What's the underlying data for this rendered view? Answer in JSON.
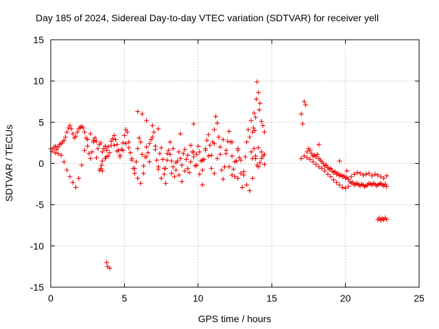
{
  "chart_data": {
    "type": "scatter",
    "title": "Day 185 of 2024, Sidereal Day-to-day VTEC variation (SDTVAR) for receiver yell",
    "xlabel": "GPS time / hours",
    "ylabel": "SDTVAR / TECUs",
    "xlim": [
      0,
      25
    ],
    "ylim": [
      -15,
      15
    ],
    "xticks": [
      "0",
      "5",
      "10",
      "15",
      "20",
      "25"
    ],
    "yticks": [
      "-15",
      "-10",
      "-5",
      "0",
      "5",
      "10",
      "15"
    ],
    "grid": true,
    "marker": "plus",
    "color": "#ee0000",
    "series": [
      {
        "name": "SDTVAR",
        "x": [
          0.0,
          0.1,
          0.2,
          0.3,
          0.4,
          0.5,
          0.6,
          0.7,
          0.8,
          0.9,
          1.0,
          1.1,
          1.2,
          1.3,
          1.4,
          1.5,
          1.6,
          1.7,
          1.8,
          1.9,
          2.0,
          2.1,
          2.2,
          2.3,
          2.4,
          2.5,
          2.6,
          2.7,
          2.8,
          2.9,
          3.0,
          3.1,
          3.2,
          3.3,
          3.4,
          3.5,
          3.6,
          3.7,
          3.8,
          3.9,
          4.0,
          4.1,
          4.2,
          4.3,
          4.4,
          4.5,
          4.6,
          4.7,
          4.8,
          4.9,
          5.0,
          5.1,
          5.2,
          5.3,
          5.4,
          5.5,
          5.6,
          5.7,
          5.8,
          5.9,
          6.0,
          6.1,
          6.2,
          6.3,
          6.4,
          6.5,
          6.6,
          6.7,
          6.8,
          6.9,
          7.0,
          7.1,
          7.2,
          7.3,
          7.4,
          7.5,
          7.6,
          7.7,
          7.8,
          7.9,
          8.0,
          8.1,
          8.2,
          8.3,
          8.4,
          8.5,
          8.6,
          8.7,
          8.8,
          8.9,
          9.0,
          9.1,
          9.2,
          9.3,
          9.4,
          9.5,
          9.6,
          9.7,
          9.8,
          9.9,
          10.0,
          10.1,
          10.2,
          10.3,
          10.4,
          10.5,
          10.6,
          10.7,
          10.8,
          10.9,
          11.0,
          11.1,
          11.2,
          11.3,
          11.4,
          11.5,
          11.6,
          11.7,
          11.8,
          11.9,
          12.0,
          12.1,
          12.2,
          12.3,
          12.4,
          12.5,
          12.6,
          12.7,
          12.8,
          12.9,
          13.0,
          13.1,
          13.2,
          13.3,
          13.4,
          13.5,
          13.6,
          13.7,
          13.8,
          13.9,
          14.0,
          14.1,
          14.2,
          14.3,
          14.4,
          14.5,
          0.3,
          0.5,
          0.7,
          0.9,
          1.1,
          1.3,
          1.5,
          1.7,
          1.9,
          2.1,
          2.3,
          2.5,
          2.7,
          2.9,
          3.1,
          3.3,
          3.5,
          3.7,
          3.9,
          4.1,
          4.3,
          4.5,
          4.7,
          4.9,
          5.1,
          5.3,
          5.5,
          5.7,
          5.9,
          6.1,
          6.3,
          6.5,
          6.7,
          6.9,
          7.1,
          7.3,
          7.5,
          7.7,
          7.9,
          8.1,
          8.3,
          8.5,
          8.7,
          8.9,
          9.1,
          9.3,
          9.5,
          9.7,
          9.9,
          10.1,
          10.3,
          10.5,
          10.7,
          10.9,
          11.1,
          11.3,
          11.5,
          11.7,
          11.9,
          12.1,
          12.3,
          12.5,
          12.7,
          12.9,
          13.1,
          13.3,
          13.5,
          13.7,
          13.9,
          14.1,
          14.3,
          14.5,
          3.4,
          3.45,
          3.5,
          3.75,
          3.8,
          3.85,
          4.0,
          5.9,
          6.2,
          6.5,
          7.3,
          7.8,
          8.2,
          8.8,
          9.7,
          10.3,
          11.1,
          11.4,
          12.3,
          12.7,
          13.6,
          13.7,
          13.75,
          13.8,
          13.85,
          13.9,
          13.95,
          14.0,
          14.1,
          14.15,
          14.2,
          14.3,
          14.4,
          14.5,
          17.0,
          17.1,
          17.2,
          17.3,
          17.4,
          17.5,
          17.6,
          17.7,
          17.8,
          17.9,
          18.0,
          18.1,
          18.2,
          18.3,
          18.4,
          18.5,
          18.6,
          18.7,
          18.8,
          18.9,
          19.0,
          19.1,
          19.2,
          19.3,
          19.4,
          19.5,
          19.6,
          19.7,
          19.8,
          19.9,
          20.0,
          20.1,
          20.2,
          20.3,
          20.4,
          20.5,
          20.6,
          20.7,
          20.8,
          20.9,
          21.0,
          21.1,
          21.2,
          21.3,
          21.4,
          21.5,
          21.6,
          21.7,
          21.8,
          21.9,
          22.0,
          22.1,
          22.2,
          22.3,
          22.4,
          22.5,
          22.6,
          22.7,
          22.8,
          17.0,
          17.2,
          17.4,
          17.6,
          17.8,
          18.0,
          18.2,
          18.4,
          18.6,
          18.8,
          19.0,
          19.2,
          19.4,
          19.6,
          19.8,
          20.0,
          20.2,
          20.4,
          20.6,
          20.8,
          21.0,
          21.2,
          21.4,
          21.6,
          21.8,
          22.0,
          22.2,
          22.4,
          22.6,
          22.8,
          18.2,
          19.6,
          20.1,
          22.2,
          22.3,
          22.4,
          22.5,
          22.6,
          22.7,
          22.8
        ],
        "y": [
          1.8,
          1.5,
          1.9,
          2.1,
          1.7,
          2.0,
          2.3,
          2.4,
          2.6,
          2.8,
          3.2,
          3.8,
          4.3,
          4.6,
          4.2,
          3.6,
          3.1,
          3.3,
          3.8,
          4.2,
          4.4,
          4.5,
          4.3,
          3.8,
          3.1,
          2.1,
          1.2,
          0.6,
          1.4,
          2.6,
          3.1,
          2.7,
          1.8,
          2.3,
          2.5,
          1.4,
          1.8,
          2.1,
          1.6,
          0.9,
          1.3,
          2.2,
          3.0,
          3.4,
          2.9,
          2.3,
          1.6,
          1.0,
          1.7,
          2.5,
          3.4,
          4.1,
          3.8,
          2.6,
          1.3,
          0.4,
          -0.6,
          -1.2,
          0.2,
          1.8,
          3.1,
          2.6,
          1.1,
          -0.3,
          0.8,
          2.0,
          1.3,
          0.2,
          2.9,
          4.6,
          3.8,
          1.7,
          0.4,
          -0.7,
          1.2,
          1.9,
          0.5,
          -1.3,
          -0.6,
          0.4,
          1.6,
          1.1,
          0.3,
          -0.4,
          -1.6,
          -0.8,
          0.3,
          1.4,
          0.6,
          -0.2,
          1.2,
          1.7,
          0.5,
          -0.6,
          -1.1,
          0.2,
          1.4,
          0.8,
          -0.3,
          1.1,
          2.1,
          1.4,
          0.3,
          -0.8,
          0.5,
          1.6,
          2.8,
          3.5,
          2.2,
          1.0,
          2.6,
          4.1,
          5.7,
          4.9,
          3.2,
          1.1,
          -0.8,
          -1.9,
          -0.4,
          1.2,
          2.7,
          3.9,
          2.6,
          0.9,
          -0.7,
          -1.6,
          0.3,
          1.8,
          0.7,
          -1.2,
          -2.9,
          -1.4,
          0.8,
          2.6,
          4.1,
          3.2,
          1.4,
          0.6,
          1.8,
          0.9,
          -0.2,
          -0.4,
          0.1,
          0.6,
          0.9,
          1.1,
          1.3,
          1.2,
          1.0,
          0.2,
          -0.8,
          -1.6,
          -2.3,
          -2.9,
          -1.8,
          -0.2,
          1.6,
          2.9,
          3.6,
          2.8,
          0.7,
          -0.8,
          -0.9,
          0.6,
          2.0,
          2.7,
          2.2,
          1.5,
          0.8,
          1.6,
          2.4,
          1.9,
          0.6,
          -0.6,
          -1.8,
          -2.4,
          -1.2,
          0.8,
          2.4,
          3.2,
          2.1,
          -0.4,
          -1.8,
          -0.6,
          1.2,
          2.6,
          1.8,
          0.1,
          -1.4,
          -2.2,
          -0.9,
          1.0,
          2.2,
          1.4,
          -0.2,
          -1.3,
          0.4,
          1.8,
          0.9,
          -0.6,
          -1.2,
          0.6,
          2.0,
          2.9,
          1.6,
          -0.4,
          -1.4,
          0.2,
          1.6,
          0.4,
          -1.0,
          -2.6,
          -3.3,
          -1.8,
          0.6,
          1.9,
          1.4,
          -0.1,
          -0.6,
          -0.2,
          0.3,
          0.8,
          -12.0,
          -12.5,
          -12.7,
          6.3,
          6.0,
          5.2,
          4.2,
          -2.4,
          -1.2,
          3.6,
          4.8,
          -2.6,
          2.4,
          3.2,
          2.6,
          -1.8,
          5.2,
          3.8,
          4.3,
          6.1,
          4.0,
          5.6,
          7.8,
          9.9,
          8.6,
          6.5,
          7.3,
          5.1,
          4.6,
          3.8,
          6.0,
          4.8,
          7.5,
          7.1,
          1.4,
          1.8,
          1.6,
          1.2,
          0.9,
          1.0,
          0.8,
          1.1,
          0.6,
          0.4,
          0.2,
          0.0,
          -0.3,
          -0.2,
          -0.5,
          -0.7,
          -0.6,
          -0.9,
          -1.1,
          -1.0,
          -1.3,
          -1.2,
          -1.5,
          -1.4,
          -1.6,
          -1.5,
          -1.8,
          -1.7,
          -1.9,
          -2.2,
          -2.4,
          -2.3,
          -2.6,
          -2.5,
          -2.4,
          -2.6,
          -2.7,
          -2.5,
          -2.6,
          -2.8,
          -2.7,
          -2.6,
          -2.4,
          -2.5,
          -2.6,
          -2.4,
          -2.5,
          -2.7,
          -2.6,
          -2.5,
          -2.4,
          -2.6,
          -2.7,
          -2.5,
          -2.8,
          0.6,
          0.9,
          0.7,
          0.5,
          0.2,
          -0.1,
          -0.4,
          -0.6,
          -0.9,
          -1.3,
          -1.6,
          -2.0,
          -2.3,
          -2.6,
          -2.9,
          -3.0,
          -2.8,
          -1.6,
          -1.3,
          -1.1,
          -1.2,
          -1.4,
          -1.3,
          -1.2,
          -1.5,
          -1.3,
          -1.4,
          -1.6,
          -1.8,
          -1.5,
          2.3,
          0.3,
          -0.9,
          -6.8,
          -6.6,
          -6.9,
          -6.7,
          -6.8,
          -6.6,
          -6.8
        ]
      }
    ]
  }
}
